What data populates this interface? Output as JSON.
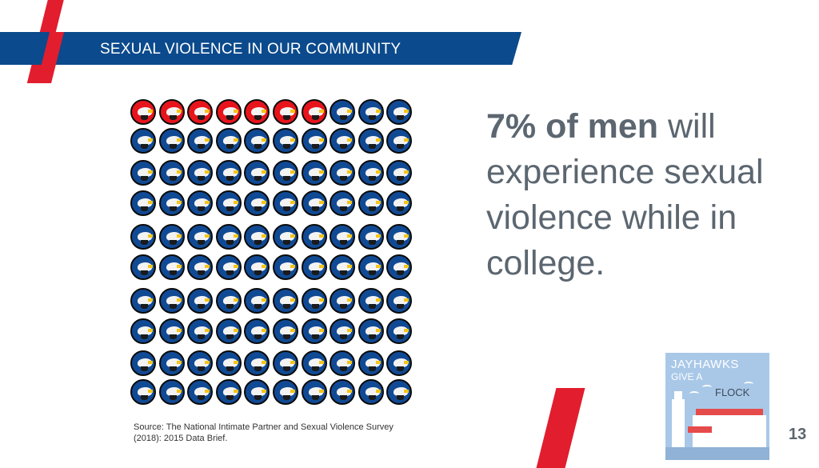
{
  "header": {
    "title": "SEXUAL VIOLENCE IN OUR COMMUNITY"
  },
  "icon_grid": {
    "total": 100,
    "highlighted": 7,
    "rows": 10,
    "columns": 10,
    "highlight_color": "#e8141c",
    "base_color": "#114a94",
    "icon": "jayhawk-icon"
  },
  "stat": {
    "emphasis": "7% of men",
    "rest": " will experience sexual violence while in college."
  },
  "source": {
    "text": "Source: The National Intimate Partner and Sexual Violence Survey (2018): 2015 Data Brief."
  },
  "logo": {
    "line1": "JAYHAWKS",
    "line2": "GIVE A",
    "line3": "FLOCK"
  },
  "page_number": "13",
  "colors": {
    "banner": "#0b4a8c",
    "accent_red": "#e11d2e",
    "text_gray": "#5b6670"
  }
}
